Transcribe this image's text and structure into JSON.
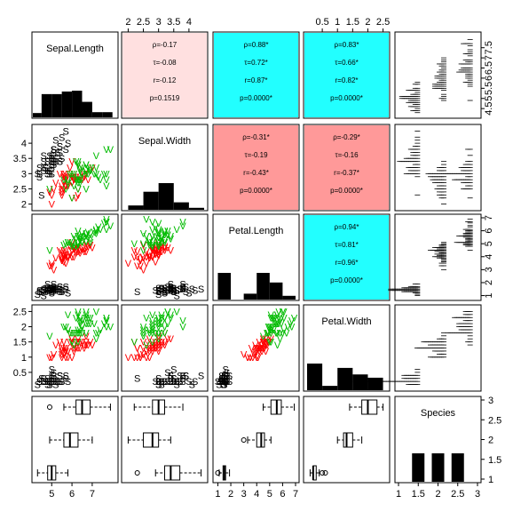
{
  "chart_data": {
    "type": "scatter",
    "variables": [
      "Sepal.Length",
      "Sepal.Width",
      "Petal.Length",
      "Petal.Width",
      "Species"
    ],
    "species_codes": [
      "S",
      "V",
      "V"
    ],
    "species_colors": [
      "#000000",
      "#ff0000",
      "#00bb00"
    ],
    "axes": {
      "Sepal.Length": {
        "ticks": [
          5,
          6,
          7
        ],
        "ticks_right": [
          4.5,
          5,
          5.5,
          6,
          6.5,
          7,
          7.5
        ],
        "ticks_right_labels": [
          "4.5",
          "5",
          "5.5",
          "6",
          "6.5",
          "7",
          "7.5"
        ],
        "range": [
          4.2,
          8.1
        ]
      },
      "Sepal.Width": {
        "ticks": [
          2,
          2.5,
          3,
          3.5,
          4
        ],
        "ticks_labels": [
          "2",
          "2.5",
          "3",
          "3.5",
          "4"
        ],
        "range": [
          1.9,
          4.5
        ]
      },
      "Petal.Length": {
        "ticks": [
          1,
          2,
          3,
          4,
          5,
          6,
          7
        ],
        "range": [
          0.9,
          7.0
        ]
      },
      "Petal.Width": {
        "ticks": [
          0.5,
          1,
          1.5,
          2,
          2.5
        ],
        "ticks_labels": [
          "0.5",
          "1",
          "1.5",
          "2",
          "2.5"
        ],
        "range": [
          0,
          2.6
        ]
      },
      "Species": {
        "ticks": [
          1,
          1.5,
          2,
          2.5,
          3
        ],
        "ticks_labels": [
          "1",
          "1.5",
          "2",
          "2.5",
          "3"
        ],
        "range": [
          1,
          3
        ]
      }
    },
    "correlations": [
      {
        "pair": [
          "Sepal.Length",
          "Sepal.Width"
        ],
        "color": "#ffe0e0",
        "lines": [
          "ρ=-0.17",
          "τ=-0.08",
          "r=-0.12",
          "p=0.1519"
        ]
      },
      {
        "pair": [
          "Sepal.Length",
          "Petal.Length"
        ],
        "color": "#22ffff",
        "lines": [
          "ρ=0.88*",
          "τ=0.72*",
          "r=0.87*",
          "p=0.0000*"
        ]
      },
      {
        "pair": [
          "Sepal.Length",
          "Petal.Width"
        ],
        "color": "#22ffff",
        "lines": [
          "ρ=0.83*",
          "τ=0.66*",
          "r=0.82*",
          "p=0.0000*"
        ]
      },
      {
        "pair": [
          "Sepal.Width",
          "Petal.Length"
        ],
        "color": "#ff9999",
        "lines": [
          "ρ=-0.31*",
          "τ=-0.19",
          "r=-0.43*",
          "p=0.0000*"
        ]
      },
      {
        "pair": [
          "Sepal.Width",
          "Petal.Width"
        ],
        "color": "#ff9999",
        "lines": [
          "ρ=-0.29*",
          "τ=-0.16",
          "r=-0.37*",
          "p=0.0000*"
        ]
      },
      {
        "pair": [
          "Petal.Length",
          "Petal.Width"
        ],
        "color": "#22ffff",
        "lines": [
          "ρ=0.94*",
          "τ=0.81*",
          "r=0.96*",
          "p=0.0000*"
        ]
      }
    ],
    "histograms": {
      "Sepal.Length": {
        "edges": [
          4,
          4.5,
          5,
          5.5,
          6,
          6.5,
          7,
          7.5,
          8
        ],
        "counts": [
          5,
          27,
          27,
          30,
          31,
          18,
          6,
          6
        ]
      },
      "Sepal.Width": {
        "edges": [
          2,
          2.5,
          3,
          3.5,
          4,
          4.5
        ],
        "counts": [
          11,
          46,
          68,
          19,
          5
        ]
      },
      "Petal.Length": {
        "edges": [
          1,
          2,
          3,
          4,
          5,
          6,
          7
        ],
        "counts": [
          50,
          0,
          11,
          50,
          32,
          7
        ]
      },
      "Petal.Width": {
        "edges": [
          0,
          0.5,
          1,
          1.5,
          2,
          2.5
        ],
        "counts": [
          49,
          8,
          41,
          29,
          23
        ]
      },
      "Species": {
        "categories": [
          1.5,
          2,
          2.5
        ],
        "counts": [
          50,
          50,
          50
        ]
      }
    },
    "boxplots": {
      "Sepal.Length": [
        {
          "species": 1,
          "whisker_low": 4.3,
          "q1": 4.8,
          "median": 5.0,
          "q3": 5.2,
          "whisker_high": 5.8,
          "outliers": []
        },
        {
          "species": 2,
          "whisker_low": 4.9,
          "q1": 5.6,
          "median": 5.9,
          "q3": 6.3,
          "whisker_high": 7.0,
          "outliers": []
        },
        {
          "species": 3,
          "whisker_low": 5.6,
          "q1": 6.2,
          "median": 6.5,
          "q3": 6.9,
          "whisker_high": 7.9,
          "outliers": [
            4.9
          ]
        }
      ],
      "Sepal.Width": [
        {
          "species": 1,
          "whisker_low": 2.9,
          "q1": 3.2,
          "median": 3.4,
          "q3": 3.7,
          "whisker_high": 4.4,
          "outliers": [
            2.3
          ]
        },
        {
          "species": 2,
          "whisker_low": 2.0,
          "q1": 2.5,
          "median": 2.8,
          "q3": 3.0,
          "whisker_high": 3.4,
          "outliers": []
        },
        {
          "species": 3,
          "whisker_low": 2.2,
          "q1": 2.8,
          "median": 3.0,
          "q3": 3.2,
          "whisker_high": 3.8,
          "outliers": []
        }
      ],
      "Petal.Length": [
        {
          "species": 1,
          "whisker_low": 1.1,
          "q1": 1.4,
          "median": 1.5,
          "q3": 1.6,
          "whisker_high": 1.9,
          "outliers": [
            1.0
          ]
        },
        {
          "species": 2,
          "whisker_low": 3.3,
          "q1": 4.0,
          "median": 4.35,
          "q3": 4.6,
          "whisker_high": 5.1,
          "outliers": [
            3.0
          ]
        },
        {
          "species": 3,
          "whisker_low": 4.5,
          "q1": 5.1,
          "median": 5.55,
          "q3": 5.9,
          "whisker_high": 6.9,
          "outliers": []
        }
      ],
      "Petal.Width": [
        {
          "species": 1,
          "whisker_low": 0.1,
          "q1": 0.2,
          "median": 0.2,
          "q3": 0.3,
          "whisker_high": 0.4,
          "outliers": [
            0.5,
            0.6
          ]
        },
        {
          "species": 2,
          "whisker_low": 1.0,
          "q1": 1.2,
          "median": 1.3,
          "q3": 1.5,
          "whisker_high": 1.8,
          "outliers": []
        },
        {
          "species": 3,
          "whisker_low": 1.4,
          "q1": 1.8,
          "median": 2.0,
          "q3": 2.3,
          "whisker_high": 2.5,
          "outliers": []
        }
      ]
    },
    "rug": {
      "Sepal.Length": [
        [
          5.1,
          4.9,
          4.7,
          4.6,
          5.0,
          5.4,
          4.6,
          5.0,
          4.4,
          4.9,
          5.4,
          4.8,
          4.8,
          4.3,
          5.8,
          5.7,
          5.4,
          5.1,
          5.7,
          5.1,
          5.4,
          5.1,
          4.6,
          5.1,
          4.8,
          5.0,
          5.0,
          5.2,
          5.2,
          4.7,
          4.8,
          5.4,
          5.2,
          5.5,
          4.9,
          5.0,
          5.5,
          4.9,
          4.4,
          5.1,
          5.0,
          4.5,
          4.4,
          5.0,
          5.1,
          4.8,
          5.1,
          4.6,
          5.3,
          5.0
        ],
        [
          7.0,
          6.4,
          6.9,
          5.5,
          6.5,
          5.7,
          6.3,
          4.9,
          6.6,
          5.2,
          5.0,
          5.9,
          6.0,
          6.1,
          5.6,
          6.7,
          5.6,
          5.8,
          6.2,
          5.6,
          5.9,
          6.1,
          6.3,
          6.1,
          6.4,
          6.6,
          6.8,
          6.7,
          6.0,
          5.7,
          5.5,
          5.5,
          5.8,
          6.0,
          5.4,
          6.0,
          6.7,
          6.3,
          5.6,
          5.5,
          5.5,
          6.1,
          5.8,
          5.0,
          5.6,
          5.7,
          5.7,
          6.2,
          5.1,
          5.7
        ],
        [
          6.3,
          5.8,
          7.1,
          6.3,
          6.5,
          7.6,
          4.9,
          7.3,
          6.7,
          7.2,
          6.5,
          6.4,
          6.8,
          5.7,
          5.8,
          6.4,
          6.5,
          7.7,
          7.7,
          6.0,
          6.9,
          5.6,
          7.7,
          6.3,
          6.7,
          7.2,
          6.2,
          6.1,
          6.4,
          7.2,
          7.4,
          7.9,
          6.4,
          6.3,
          6.1,
          7.7,
          6.3,
          6.4,
          6.0,
          6.9,
          6.7,
          6.9,
          5.8,
          6.8,
          6.7,
          6.7,
          6.3,
          6.5,
          6.2,
          5.9
        ]
      ],
      "Sepal.Width": [
        [
          3.5,
          3.0,
          3.2,
          3.1,
          3.6,
          3.9,
          3.4,
          3.4,
          2.9,
          3.1,
          3.7,
          3.4,
          3.0,
          3.0,
          4.0,
          4.4,
          3.9,
          3.5,
          3.8,
          3.8,
          3.4,
          3.7,
          3.6,
          3.3,
          3.4,
          3.0,
          3.4,
          3.5,
          3.4,
          3.2,
          3.1,
          3.4,
          4.1,
          4.2,
          3.1,
          3.2,
          3.5,
          3.6,
          3.0,
          3.4,
          3.5,
          2.3,
          3.2,
          3.5,
          3.8,
          3.0,
          3.8,
          3.2,
          3.7,
          3.3
        ],
        [
          3.2,
          3.2,
          3.1,
          2.3,
          2.8,
          2.8,
          3.3,
          2.4,
          2.9,
          2.7,
          2.0,
          3.0,
          2.2,
          2.9,
          2.9,
          3.1,
          3.0,
          2.7,
          2.2,
          2.5,
          3.2,
          2.8,
          2.5,
          2.8,
          2.9,
          3.0,
          2.8,
          3.0,
          2.9,
          2.6,
          2.4,
          2.4,
          2.7,
          2.7,
          3.0,
          3.4,
          3.1,
          2.3,
          3.0,
          2.5,
          2.6,
          3.0,
          2.6,
          2.3,
          2.7,
          3.0,
          2.9,
          2.9,
          2.5,
          2.8
        ],
        [
          3.3,
          2.7,
          3.0,
          2.9,
          3.0,
          3.0,
          2.5,
          2.9,
          2.5,
          3.6,
          3.2,
          2.7,
          3.0,
          2.5,
          2.8,
          3.2,
          3.0,
          3.8,
          2.6,
          2.2,
          3.2,
          2.8,
          2.8,
          2.7,
          3.3,
          3.2,
          2.8,
          3.0,
          2.8,
          3.0,
          2.8,
          3.8,
          2.8,
          2.8,
          2.6,
          3.0,
          3.4,
          3.1,
          3.0,
          3.1,
          3.1,
          3.1,
          2.7,
          3.2,
          3.3,
          3.0,
          2.5,
          3.0,
          3.4,
          3.0
        ]
      ],
      "Petal.Length": [
        [
          1.4,
          1.4,
          1.3,
          1.5,
          1.4,
          1.7,
          1.4,
          1.5,
          1.4,
          1.5,
          1.5,
          1.6,
          1.4,
          1.1,
          1.2,
          1.5,
          1.3,
          1.4,
          1.7,
          1.5,
          1.7,
          1.5,
          1.0,
          1.7,
          1.9,
          1.6,
          1.6,
          1.5,
          1.4,
          1.6,
          1.6,
          1.5,
          1.5,
          1.4,
          1.5,
          1.2,
          1.3,
          1.4,
          1.3,
          1.5,
          1.3,
          1.3,
          1.3,
          1.6,
          1.9,
          1.4,
          1.6,
          1.4,
          1.5,
          1.4
        ],
        [
          4.7,
          4.5,
          4.9,
          4.0,
          4.6,
          4.5,
          4.7,
          3.3,
          4.6,
          3.9,
          3.5,
          4.2,
          4.0,
          4.7,
          3.6,
          4.4,
          4.5,
          4.1,
          4.5,
          3.9,
          4.8,
          4.0,
          4.9,
          4.7,
          4.3,
          4.4,
          4.8,
          5.0,
          4.5,
          3.5,
          3.8,
          3.7,
          3.9,
          5.1,
          4.5,
          4.5,
          4.7,
          4.4,
          4.1,
          4.0,
          4.4,
          4.6,
          4.0,
          3.3,
          4.2,
          4.2,
          4.2,
          4.3,
          3.0,
          4.1
        ],
        [
          6.0,
          5.1,
          5.9,
          5.6,
          5.8,
          6.6,
          4.5,
          6.3,
          5.8,
          6.1,
          5.1,
          5.3,
          5.5,
          5.0,
          5.1,
          5.3,
          5.5,
          6.7,
          6.9,
          5.0,
          5.7,
          4.9,
          6.7,
          4.9,
          5.7,
          6.0,
          4.8,
          4.9,
          5.6,
          5.8,
          6.1,
          6.4,
          5.6,
          5.1,
          5.6,
          6.1,
          5.6,
          5.5,
          4.8,
          5.4,
          5.6,
          5.1,
          5.1,
          5.9,
          5.7,
          5.2,
          5.0,
          5.2,
          5.4,
          5.1
        ]
      ],
      "Petal.Width": [
        [
          0.2,
          0.2,
          0.2,
          0.2,
          0.2,
          0.4,
          0.3,
          0.2,
          0.2,
          0.1,
          0.2,
          0.2,
          0.1,
          0.1,
          0.2,
          0.4,
          0.4,
          0.3,
          0.3,
          0.3,
          0.2,
          0.4,
          0.2,
          0.5,
          0.2,
          0.2,
          0.4,
          0.2,
          0.2,
          0.2,
          0.2,
          0.4,
          0.1,
          0.2,
          0.2,
          0.2,
          0.2,
          0.1,
          0.2,
          0.2,
          0.3,
          0.3,
          0.2,
          0.6,
          0.4,
          0.3,
          0.2,
          0.2,
          0.2,
          0.2
        ],
        [
          1.4,
          1.5,
          1.5,
          1.3,
          1.5,
          1.3,
          1.6,
          1.0,
          1.3,
          1.4,
          1.0,
          1.5,
          1.0,
          1.4,
          1.3,
          1.4,
          1.5,
          1.0,
          1.5,
          1.1,
          1.8,
          1.3,
          1.5,
          1.2,
          1.3,
          1.4,
          1.4,
          1.7,
          1.5,
          1.0,
          1.1,
          1.0,
          1.2,
          1.6,
          1.5,
          1.6,
          1.5,
          1.3,
          1.3,
          1.3,
          1.2,
          1.4,
          1.2,
          1.0,
          1.3,
          1.2,
          1.3,
          1.3,
          1.1,
          1.3
        ],
        [
          2.5,
          1.9,
          2.1,
          1.8,
          2.2,
          2.1,
          1.7,
          1.8,
          1.8,
          2.5,
          2.0,
          1.9,
          2.1,
          2.0,
          2.4,
          2.3,
          1.8,
          2.2,
          2.3,
          1.5,
          2.3,
          2.0,
          2.0,
          1.8,
          2.1,
          1.8,
          1.8,
          1.8,
          2.1,
          1.6,
          1.9,
          2.0,
          2.2,
          1.5,
          1.4,
          2.3,
          2.4,
          1.8,
          1.8,
          2.1,
          2.4,
          2.3,
          1.9,
          2.3,
          2.5,
          2.3,
          1.9,
          2.0,
          2.3,
          1.8
        ]
      ]
    }
  }
}
